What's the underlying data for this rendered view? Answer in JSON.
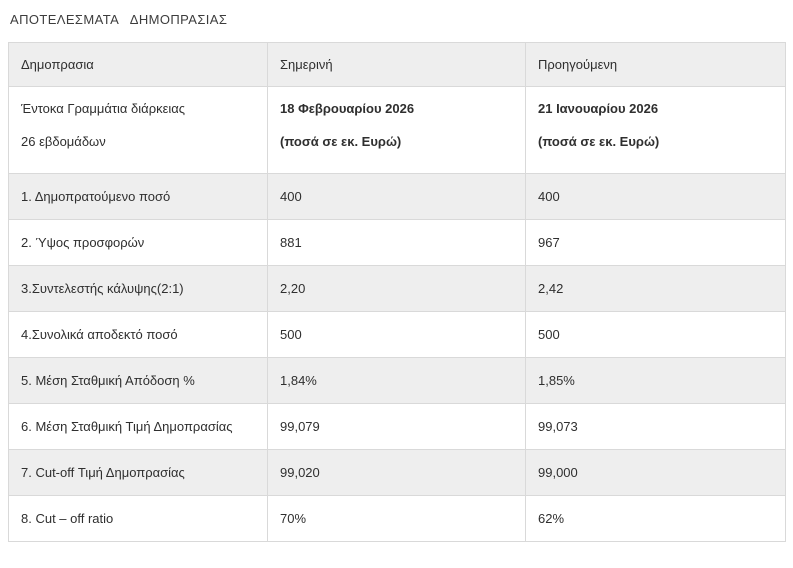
{
  "page": {
    "title": "ΑΠΟΤΕΛΕΣΜΑΤΑ   ΔΗΜΟΠΡΑΣΙΑΣ"
  },
  "table": {
    "headers": [
      "Δημοπρασια",
      "Σημερινή",
      "Προηγούμενη"
    ],
    "subheader": {
      "label_line1": "Έντοκα Γραμμάτια διάρκειας",
      "label_line2": "26 εβδομάδων",
      "current_line1": "18 Φεβρουαρίου 2026",
      "current_line2": "(ποσά σε εκ. Ευρώ)",
      "previous_line1": "21 Ιανουαρίου 2026",
      "previous_line2": "(ποσά σε εκ. Ευρώ)"
    },
    "rows": [
      {
        "label": "1. Δημοπρατούμενο ποσό",
        "current": "400",
        "previous": "400"
      },
      {
        "label": "2. Ύψος προσφορών",
        "current": "881",
        "previous": "967"
      },
      {
        "label": "3.Συντελεστής κάλυψης(2:1)",
        "current": "2,20",
        "previous": "2,42"
      },
      {
        "label": "4.Συνολικά αποδεκτό ποσό",
        "current": "500",
        "previous": "500"
      },
      {
        "label": "5. Μέση Σταθμική Απόδοση %",
        "current": "1,84%",
        "previous": "1,85%"
      },
      {
        "label": "6. Μέση Σταθμική Τιμή Δημοπρασίας",
        "current": "99,079",
        "previous": "99,073"
      },
      {
        "label": "7. Cut-off Τιμή Δημοπρασίας",
        "current": "99,020",
        "previous": "99,000"
      },
      {
        "label": "8. Cut – off ratio",
        "current": "70%",
        "previous": "62%"
      }
    ]
  },
  "colors": {
    "row_alt_bg": "#eeeeee",
    "border": "#d9d9d9",
    "text": "#2f2f2f"
  }
}
